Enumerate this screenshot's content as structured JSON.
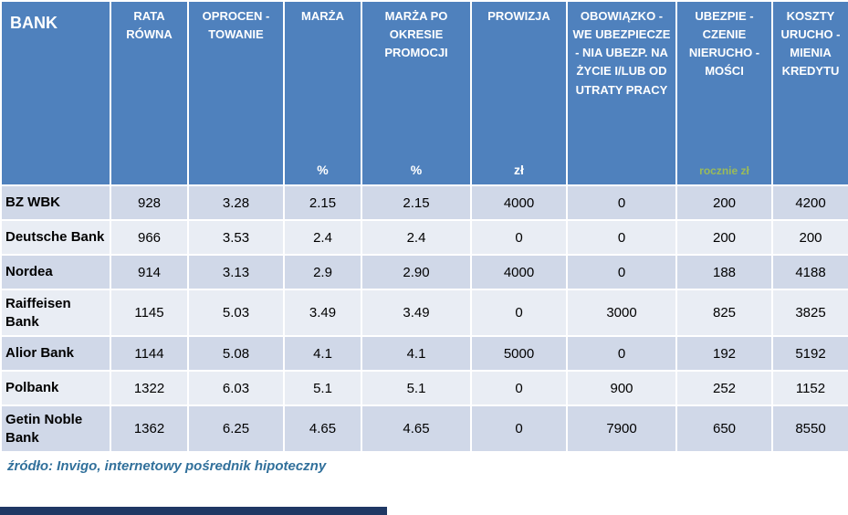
{
  "chart_data": {
    "type": "table",
    "columns": [
      {
        "title": "BANK",
        "unit": ""
      },
      {
        "title": "RATA RÓWNA",
        "unit": ""
      },
      {
        "title": "OPROCEN - TOWANIE",
        "unit": ""
      },
      {
        "title": "MARŻA",
        "unit": "%"
      },
      {
        "title": "MARŻA PO OKRESIE PROMOCJI",
        "unit": "%"
      },
      {
        "title": "PROWIZJA",
        "unit": "zł"
      },
      {
        "title": "OBOWIĄZKO - WE UBEZPIECZE - NIA UBEZP. NA ŻYCIE I/LUB OD UTRATY PRACY",
        "unit": ""
      },
      {
        "title": "UBEZPIE - CZENIE NIERUCHO - MOŚCI",
        "unit": "rocznie zł"
      },
      {
        "title": "KOSZTY URUCHO - MIENIA KREDYTU",
        "unit": ""
      }
    ],
    "rows": [
      {
        "bank": "BZ WBK",
        "values": [
          "928",
          "3.28",
          "2.15",
          "2.15",
          "4000",
          "0",
          "200",
          "4200"
        ]
      },
      {
        "bank": "Deutsche Bank",
        "values": [
          "966",
          "3.53",
          "2.4",
          "2.4",
          "0",
          "0",
          "200",
          "200"
        ]
      },
      {
        "bank": "Nordea",
        "values": [
          "914",
          "3.13",
          "2.9",
          "2.90",
          "4000",
          "0",
          "188",
          "4188"
        ]
      },
      {
        "bank": "Raiffeisen Bank",
        "values": [
          "1145",
          "5.03",
          "3.49",
          "3.49",
          "0",
          "3000",
          "825",
          "3825"
        ]
      },
      {
        "bank": "Alior Bank",
        "values": [
          "1144",
          "5.08",
          "4.1",
          "4.1",
          "5000",
          "0",
          "192",
          "5192"
        ]
      },
      {
        "bank": "Polbank",
        "values": [
          "1322",
          "6.03",
          "5.1",
          "5.1",
          "0",
          "900",
          "252",
          "1152"
        ]
      },
      {
        "bank": "Getin Noble Bank",
        "values": [
          "1362",
          "6.25",
          "4.65",
          "4.65",
          "0",
          "7900",
          "650",
          "8550"
        ]
      }
    ]
  },
  "footer": {
    "source": "źródło: Invigo, internetowy pośrednik hipoteczny"
  },
  "colors": {
    "header_bg": "#4f81bd",
    "row_odd": "#d0d8e8",
    "row_even": "#e9edf4",
    "unit_green": "#9bbb59",
    "footer_text": "#31709b",
    "bottom_bar": "#1f3864"
  }
}
